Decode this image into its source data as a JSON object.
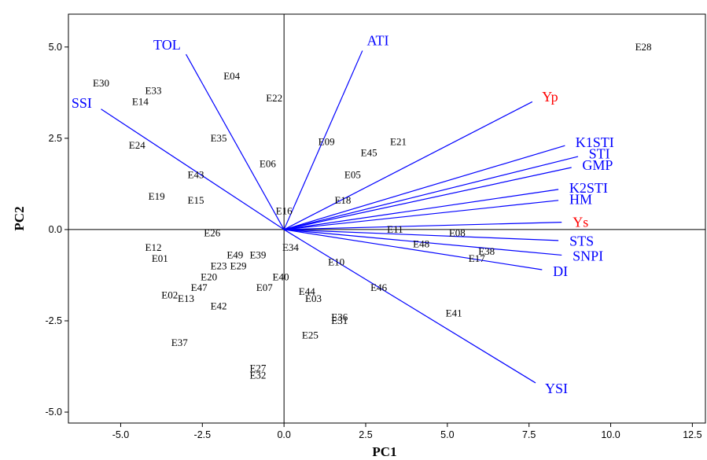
{
  "chart_data": {
    "type": "scatter",
    "title": "",
    "xlabel": "PC1",
    "ylabel": "PC2",
    "xlim": [
      -6.6,
      12.9
    ],
    "ylim": [
      -5.3,
      5.9
    ],
    "grid": false,
    "x_ticks": [
      -5.0,
      -2.5,
      0.0,
      2.5,
      5.0,
      7.5,
      10.0,
      12.5
    ],
    "x_tick_labels": [
      "-5.0",
      "-2.5",
      "0.0",
      "2.5",
      "5.0",
      "7.5",
      "10.0",
      "12.5"
    ],
    "y_ticks": [
      5.0,
      2.5,
      0.0,
      -2.5,
      -5.0
    ],
    "y_tick_labels": [
      "5.0",
      "2.5",
      "0.0",
      "-2.5",
      "-5.0"
    ],
    "colors": {
      "vector": "#0000ff",
      "vector_label": "#0000ff",
      "highlight_label": "#ff0000",
      "points": "#000000",
      "axes": "#000000"
    },
    "vectors": [
      {
        "name": "TOL",
        "x": -3.0,
        "y": 4.8
      },
      {
        "name": "ATI",
        "x": 2.4,
        "y": 4.9
      },
      {
        "name": "SSI",
        "x": -5.6,
        "y": 3.3
      },
      {
        "name": "Yp",
        "x": 7.6,
        "y": 3.5,
        "highlight": true
      },
      {
        "name": "K1STI",
        "x": 8.6,
        "y": 2.3
      },
      {
        "name": "STI",
        "x": 9.0,
        "y": 2.0
      },
      {
        "name": "GMP",
        "x": 8.8,
        "y": 1.7
      },
      {
        "name": "K2STI",
        "x": 8.4,
        "y": 1.1
      },
      {
        "name": "HM",
        "x": 8.4,
        "y": 0.8
      },
      {
        "name": "Ys",
        "x": 8.5,
        "y": 0.2,
        "highlight": true
      },
      {
        "name": "STS",
        "x": 8.4,
        "y": -0.3
      },
      {
        "name": "SNPI",
        "x": 8.5,
        "y": -0.7
      },
      {
        "name": "DI",
        "x": 7.9,
        "y": -1.1
      },
      {
        "name": "YSI",
        "x": 7.7,
        "y": -4.2
      }
    ],
    "observations": [
      {
        "name": "E28",
        "x": 11.0,
        "y": 5.0
      },
      {
        "name": "E30",
        "x": -5.6,
        "y": 4.0
      },
      {
        "name": "E04",
        "x": -1.6,
        "y": 4.2
      },
      {
        "name": "E33",
        "x": -4.0,
        "y": 3.8
      },
      {
        "name": "E14",
        "x": -4.4,
        "y": 3.5
      },
      {
        "name": "E22",
        "x": -0.3,
        "y": 3.6
      },
      {
        "name": "E35",
        "x": -2.0,
        "y": 2.5
      },
      {
        "name": "E24",
        "x": -4.5,
        "y": 2.3
      },
      {
        "name": "E09",
        "x": 1.3,
        "y": 2.4
      },
      {
        "name": "E21",
        "x": 3.5,
        "y": 2.4
      },
      {
        "name": "E45",
        "x": 2.6,
        "y": 2.1
      },
      {
        "name": "E06",
        "x": -0.5,
        "y": 1.8
      },
      {
        "name": "E43",
        "x": -2.7,
        "y": 1.5
      },
      {
        "name": "E05",
        "x": 2.1,
        "y": 1.5
      },
      {
        "name": "E19",
        "x": -3.9,
        "y": 0.9
      },
      {
        "name": "E15",
        "x": -2.7,
        "y": 0.8
      },
      {
        "name": "E18",
        "x": 1.8,
        "y": 0.8
      },
      {
        "name": "E16",
        "x": 0.0,
        "y": 0.5
      },
      {
        "name": "E26",
        "x": -2.2,
        "y": -0.1
      },
      {
        "name": "E11",
        "x": 3.4,
        "y": 0.0
      },
      {
        "name": "E08",
        "x": 5.3,
        "y": -0.1
      },
      {
        "name": "E48",
        "x": 4.2,
        "y": -0.4
      },
      {
        "name": "E12",
        "x": -4.0,
        "y": -0.5
      },
      {
        "name": "E34",
        "x": 0.2,
        "y": -0.5
      },
      {
        "name": "E38",
        "x": 6.2,
        "y": -0.6
      },
      {
        "name": "E17",
        "x": 5.9,
        "y": -0.8
      },
      {
        "name": "E01",
        "x": -3.8,
        "y": -0.8
      },
      {
        "name": "E49",
        "x": -1.5,
        "y": -0.7
      },
      {
        "name": "E39",
        "x": -0.8,
        "y": -0.7
      },
      {
        "name": "E23",
        "x": -2.0,
        "y": -1.0
      },
      {
        "name": "E29",
        "x": -1.4,
        "y": -1.0
      },
      {
        "name": "E10",
        "x": 1.6,
        "y": -0.9
      },
      {
        "name": "E20",
        "x": -2.3,
        "y": -1.3
      },
      {
        "name": "E40",
        "x": -0.1,
        "y": -1.3
      },
      {
        "name": "E47",
        "x": -2.6,
        "y": -1.6
      },
      {
        "name": "E07",
        "x": -0.6,
        "y": -1.6
      },
      {
        "name": "E46",
        "x": 2.9,
        "y": -1.6
      },
      {
        "name": "E44",
        "x": 0.7,
        "y": -1.7
      },
      {
        "name": "E02",
        "x": -3.5,
        "y": -1.8
      },
      {
        "name": "E13",
        "x": -3.0,
        "y": -1.9
      },
      {
        "name": "E03",
        "x": 0.9,
        "y": -1.9
      },
      {
        "name": "E42",
        "x": -2.0,
        "y": -2.1
      },
      {
        "name": "E41",
        "x": 5.2,
        "y": -2.3
      },
      {
        "name": "E36",
        "x": 1.7,
        "y": -2.4
      },
      {
        "name": "E31",
        "x": 1.7,
        "y": -2.5
      },
      {
        "name": "E25",
        "x": 0.8,
        "y": -2.9
      },
      {
        "name": "E37",
        "x": -3.2,
        "y": -3.1
      },
      {
        "name": "E27",
        "x": -0.8,
        "y": -3.8
      },
      {
        "name": "E32",
        "x": -0.8,
        "y": -4.0
      }
    ]
  }
}
